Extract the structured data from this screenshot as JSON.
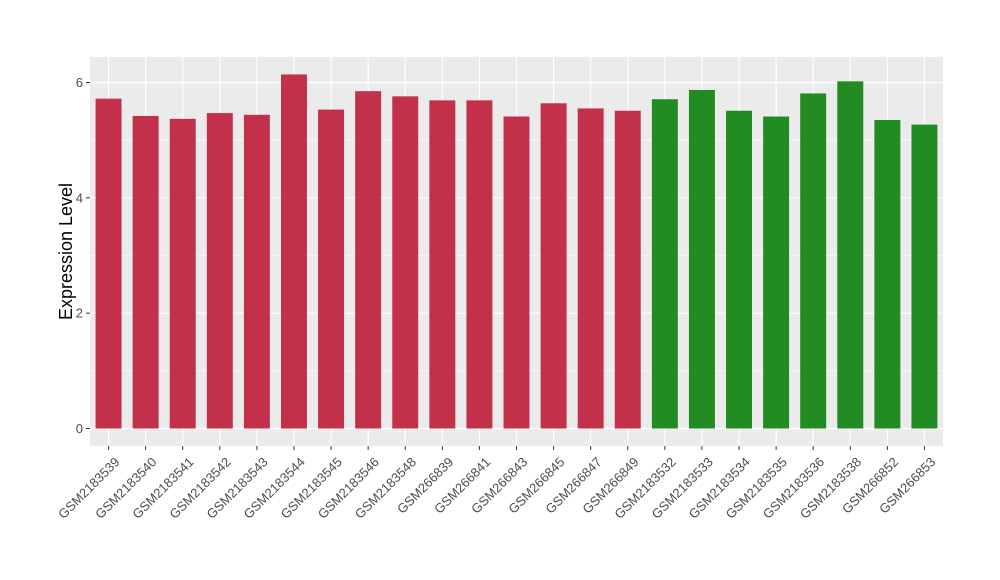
{
  "chart_data": {
    "type": "bar",
    "title": "",
    "xlabel": "",
    "ylabel": "Expression Level",
    "ylim": [
      0,
      6.3
    ],
    "yticks": [
      0,
      2,
      4,
      6
    ],
    "grid": true,
    "legend": "none",
    "colors": {
      "group1": "#c3304a",
      "group2": "#228b22",
      "panel": "#ebebeb",
      "grid": "#ffffff"
    },
    "categories": [
      "GSM2183539",
      "GSM2183540",
      "GSM2183541",
      "GSM2183542",
      "GSM2183543",
      "GSM2183544",
      "GSM2183545",
      "GSM2183546",
      "GSM2183548",
      "GSM266839",
      "GSM266841",
      "GSM266843",
      "GSM266845",
      "GSM266847",
      "GSM266849",
      "GSM2183532",
      "GSM2183533",
      "GSM2183534",
      "GSM2183535",
      "GSM2183536",
      "GSM2183538",
      "GSM266852",
      "GSM266853"
    ],
    "values": [
      5.72,
      5.42,
      5.37,
      5.47,
      5.44,
      6.14,
      5.53,
      5.85,
      5.76,
      5.69,
      5.69,
      5.41,
      5.64,
      5.55,
      5.51,
      5.71,
      5.87,
      5.51,
      5.41,
      5.81,
      6.02,
      5.35,
      5.27
    ],
    "groups": [
      1,
      1,
      1,
      1,
      1,
      1,
      1,
      1,
      1,
      1,
      1,
      1,
      1,
      1,
      1,
      2,
      2,
      2,
      2,
      2,
      2,
      2,
      2
    ]
  }
}
